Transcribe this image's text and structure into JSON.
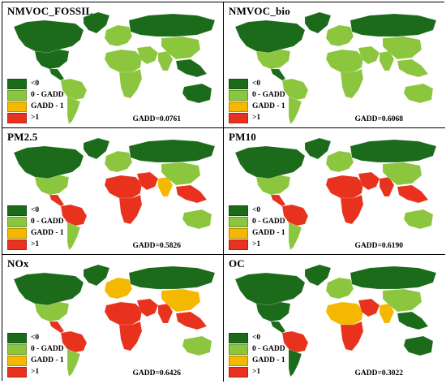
{
  "legend": {
    "items": [
      {
        "label": "<0",
        "color": "#1b6b1b"
      },
      {
        "label": "0 - GADD",
        "color": "#8cc63f"
      },
      {
        "label": "GADD - 1",
        "color": "#f5b800"
      },
      {
        "label": ">1",
        "color": "#e8321e"
      }
    ]
  },
  "panels": [
    {
      "title": "NMVOC_FOSSIL",
      "gadd": "GADD=0.0761",
      "regions": {
        "na_north": "<0",
        "na_south": "<0",
        "greenland": "<0",
        "central_am": "<0",
        "sa_north": "0 - GADD",
        "sa_south": "0 - GADD",
        "europe": "0 - GADD",
        "russia": "<0",
        "africa_north": "0 - GADD",
        "africa_south": "0 - GADD",
        "mideast": "0 - GADD",
        "india": "0 - GADD",
        "china": "0 - GADD",
        "se_asia": "<0",
        "australia": "<0"
      }
    },
    {
      "title": "NMVOC_bio",
      "gadd": "GADD=0.6068",
      "regions": {
        "na_north": "<0",
        "na_south": "0 - GADD",
        "greenland": "<0",
        "central_am": "<0",
        "sa_north": "0 - GADD",
        "sa_south": "0 - GADD",
        "europe": "0 - GADD",
        "russia": "<0",
        "africa_north": "0 - GADD",
        "africa_south": "0 - GADD",
        "mideast": "0 - GADD",
        "india": "0 - GADD",
        "china": "0 - GADD",
        "se_asia": "0 - GADD",
        "australia": "0 - GADD"
      }
    },
    {
      "title": "PM2.5",
      "gadd": "GADD=0.5826",
      "regions": {
        "na_north": "<0",
        "na_south": "0 - GADD",
        "greenland": "<0",
        "central_am": ">1",
        "sa_north": ">1",
        "sa_south": "0 - GADD",
        "europe": "0 - GADD",
        "russia": "<0",
        "africa_north": ">1",
        "africa_south": ">1",
        "mideast": ">1",
        "india": "GADD - 1",
        "china": "0 - GADD",
        "se_asia": ">1",
        "australia": "0 - GADD"
      }
    },
    {
      "title": "PM10",
      "gadd": "GADD=0.6190",
      "regions": {
        "na_north": "<0",
        "na_south": "0 - GADD",
        "greenland": "<0",
        "central_am": ">1",
        "sa_north": ">1",
        "sa_south": "0 - GADD",
        "europe": "0 - GADD",
        "russia": "<0",
        "africa_north": ">1",
        "africa_south": ">1",
        "mideast": ">1",
        "india": ">1",
        "china": "0 - GADD",
        "se_asia": ">1",
        "australia": "0 - GADD"
      }
    },
    {
      "title": "NOx",
      "gadd": "GADD=0.6426",
      "regions": {
        "na_north": "<0",
        "na_south": "0 - GADD",
        "greenland": "<0",
        "central_am": ">1",
        "sa_north": ">1",
        "sa_south": "0 - GADD",
        "europe": "GADD - 1",
        "russia": "<0",
        "africa_north": ">1",
        "africa_south": ">1",
        "mideast": ">1",
        "india": ">1",
        "china": "GADD - 1",
        "se_asia": ">1",
        "australia": "0 - GADD"
      }
    },
    {
      "title": "OC",
      "gadd": "GADD=0.3022",
      "regions": {
        "na_north": "<0",
        "na_south": "<0",
        "greenland": "<0",
        "central_am": "<0",
        "sa_north": ">1",
        "sa_south": "<0",
        "europe": "0 - GADD",
        "russia": "<0",
        "africa_north": "GADD - 1",
        "africa_south": ">1",
        "mideast": ">1",
        "india": "GADD - 1",
        "china": "0 - GADD",
        "se_asia": "<0",
        "australia": "<0"
      }
    }
  ]
}
